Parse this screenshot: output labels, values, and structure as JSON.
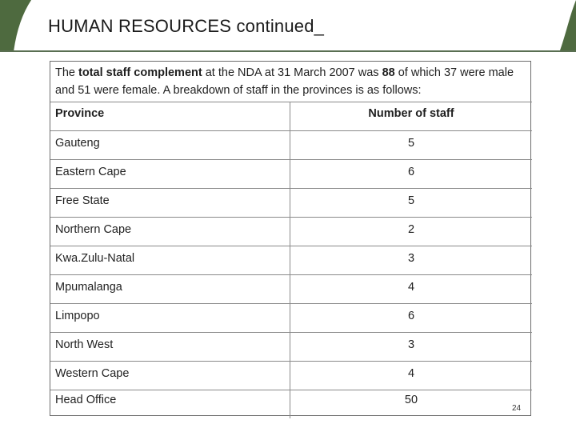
{
  "header": {
    "title": "HUMAN RESOURCES continued_",
    "accent_color": "#4e6a3f"
  },
  "intro": {
    "part1": "The ",
    "bold1": "total staff complement",
    "part2": " at the NDA at 31 March 2007 was ",
    "bold2": "88",
    "part3": " of which 37 were male and 51 were female.  A breakdown of staff in the provinces is as follows:"
  },
  "table": {
    "headers": [
      "Province",
      "Number of staff"
    ],
    "rows": [
      {
        "province": "Gauteng",
        "count": "5"
      },
      {
        "province": "Eastern Cape",
        "count": "6"
      },
      {
        "province": "Free State",
        "count": "5"
      },
      {
        "province": "Northern Cape",
        "count": "2"
      },
      {
        "province": "Kwa.Zulu-Natal",
        "count": "3"
      },
      {
        "province": "Mpumalanga",
        "count": "4"
      },
      {
        "province": "Limpopo",
        "count": "6"
      },
      {
        "province": "North West",
        "count": "3"
      },
      {
        "province": "Western Cape",
        "count": "4"
      },
      {
        "province": "Head Office",
        "count": "50"
      }
    ]
  },
  "footer": {
    "slide_number": "24"
  }
}
